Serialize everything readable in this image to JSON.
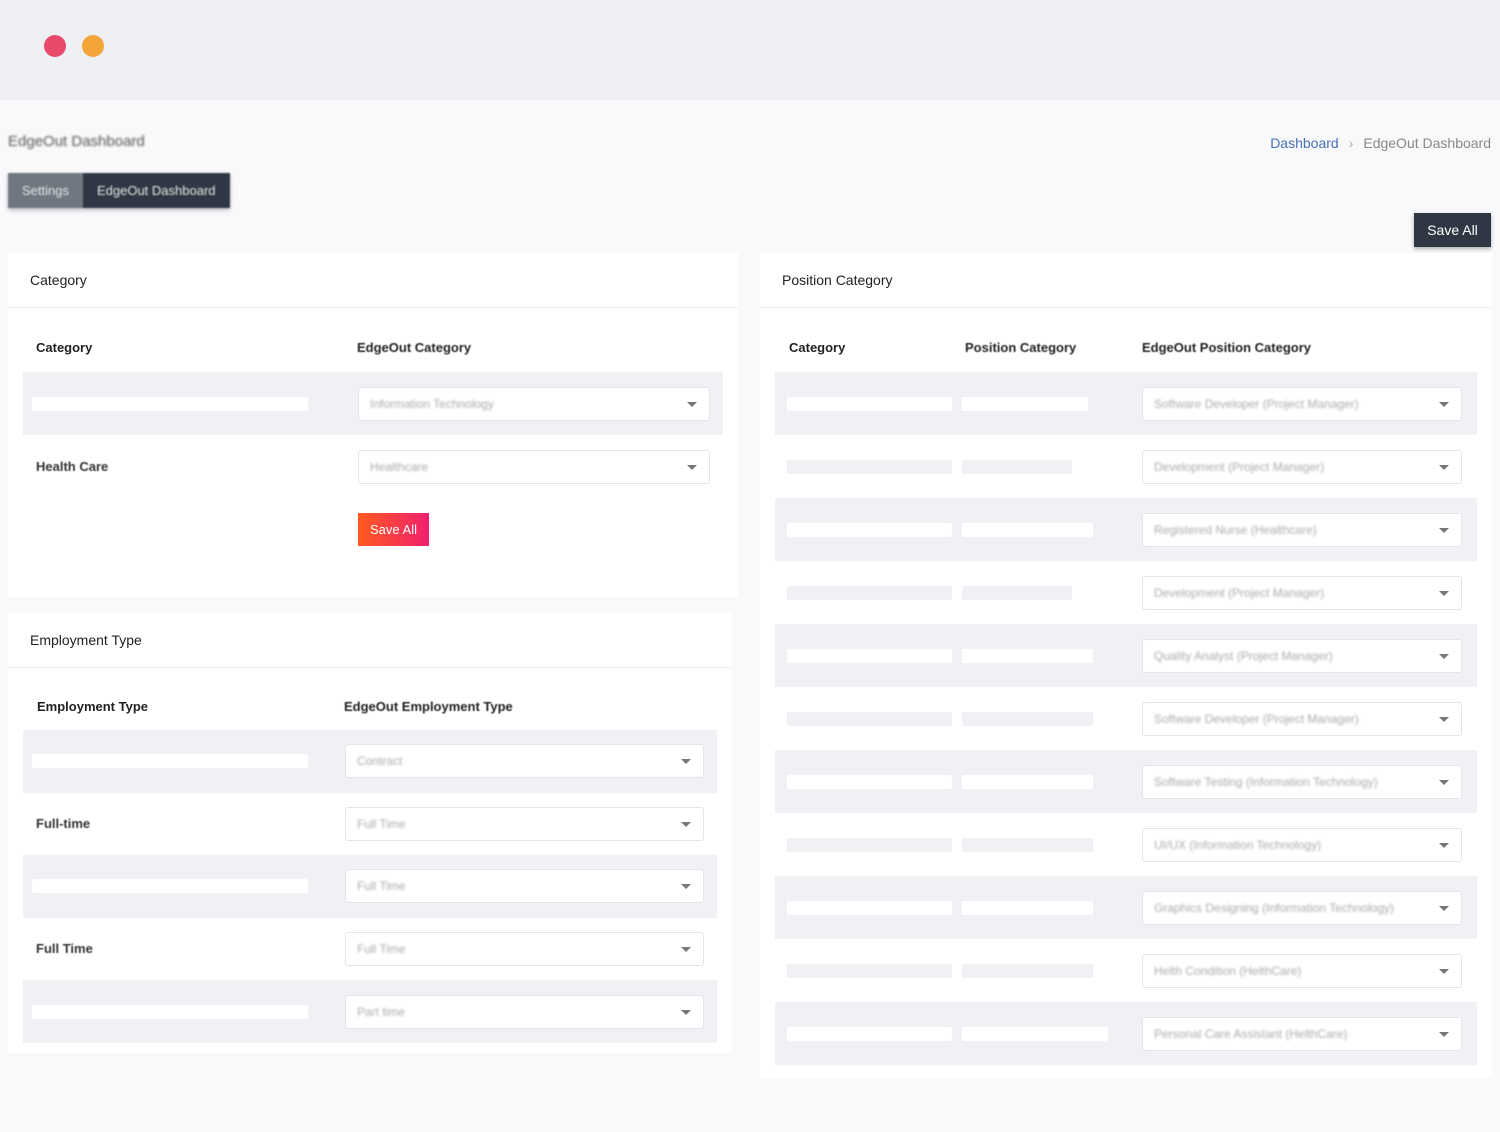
{
  "window": {
    "dots": [
      "#e84a6b",
      "#f4a53a"
    ]
  },
  "header": {
    "title": "EdgeOut Dashboard",
    "breadcrumb": [
      "Dashboard",
      "EdgeOut Dashboard"
    ],
    "tabs": [
      "Settings",
      "EdgeOut Dashboard"
    ],
    "save_all": "Save All"
  },
  "category": {
    "title": "Category",
    "columns": [
      "Category",
      "EdgeOut Category"
    ],
    "rows": [
      {
        "label": "",
        "value": "Information Technology"
      },
      {
        "label": "Health Care",
        "value": "Healthcare"
      }
    ],
    "save": "Save All"
  },
  "employment": {
    "title": "Employment Type",
    "columns": [
      "Employment Type",
      "EdgeOut Employment Type"
    ],
    "rows": [
      {
        "label": "",
        "value": "Contract"
      },
      {
        "label": "Full-time",
        "value": "Full Time"
      },
      {
        "label": "",
        "value": "Full Time"
      },
      {
        "label": "Full Time",
        "value": "Full Time"
      },
      {
        "label": "",
        "value": "Part time"
      }
    ]
  },
  "position": {
    "title": "Position Category",
    "columns": [
      "Category",
      "Position Category",
      "EdgeOut Position Category"
    ],
    "rows": [
      {
        "value": "Software Developer (Project Manager)"
      },
      {
        "value": "Development (Project Manager)"
      },
      {
        "value": "Registered Nurse (Healthcare)"
      },
      {
        "value": "Development (Project Manager)"
      },
      {
        "value": "Quality Analyst (Project Manager)"
      },
      {
        "value": "Software Developer (Project Manager)"
      },
      {
        "value": "Software Testing (Information Technology)"
      },
      {
        "value": "UI/UX (Information Technology)"
      },
      {
        "value": "Graphics Designing (Information Technology)"
      },
      {
        "value": "Helth Condition (HelthCare)"
      },
      {
        "value": "Personal Care Assistant (HelthCare)"
      }
    ]
  }
}
